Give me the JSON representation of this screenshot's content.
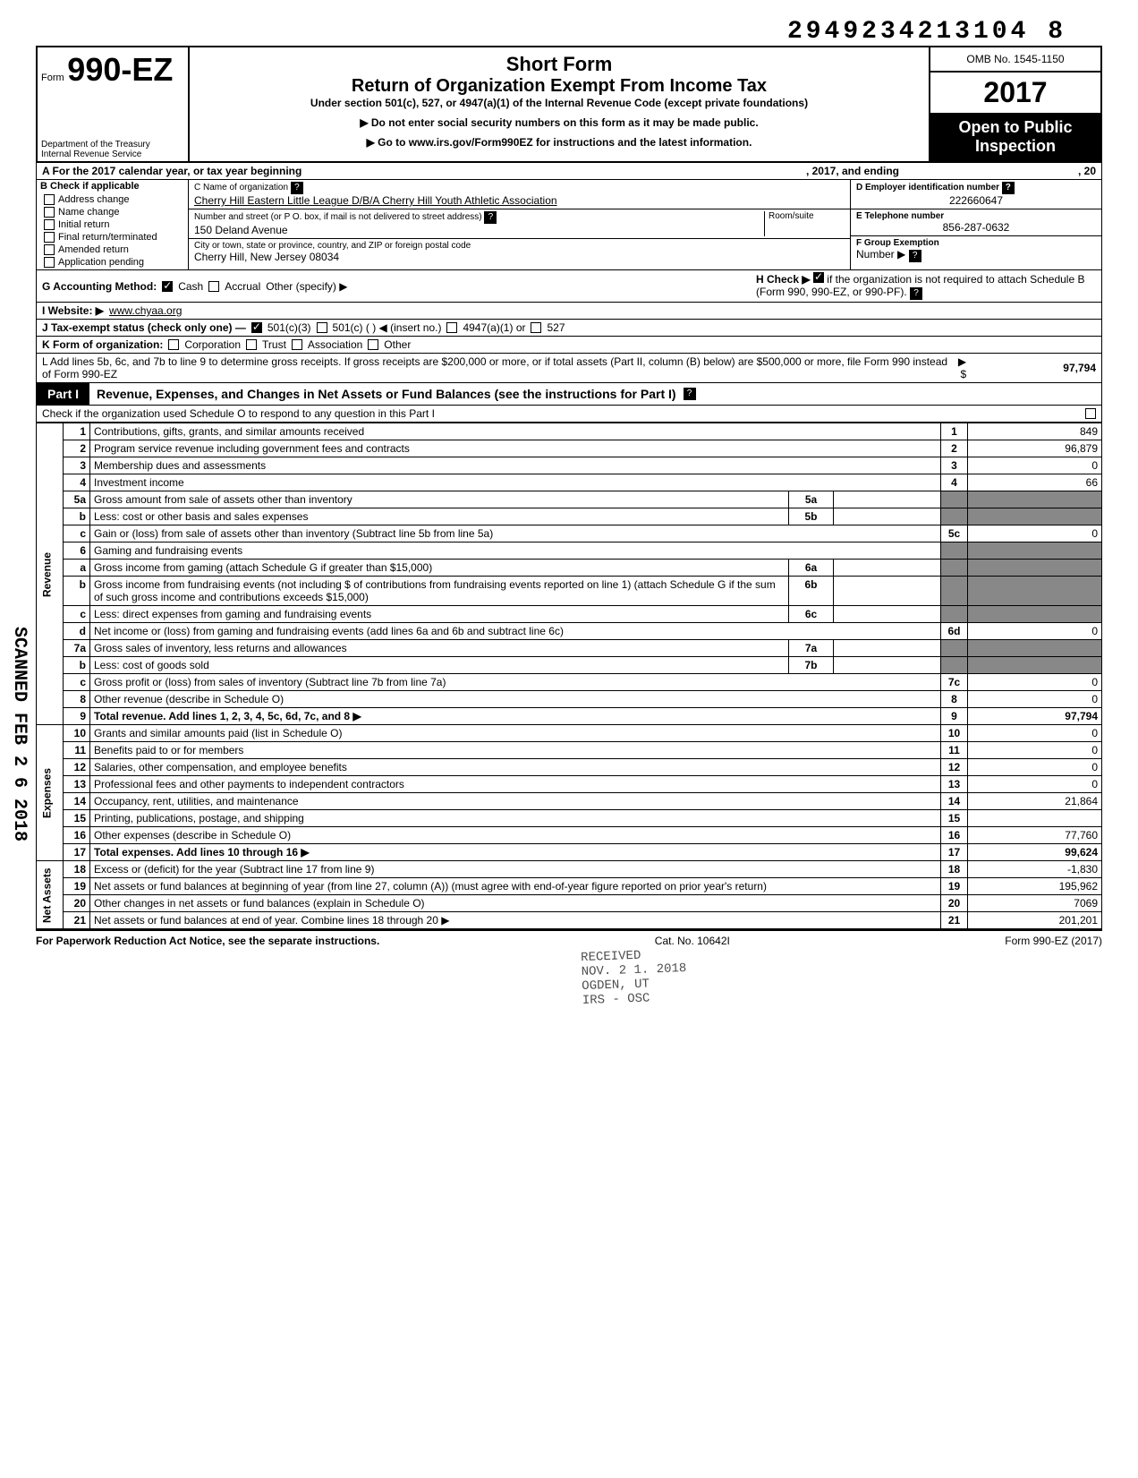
{
  "top_id": "2949234213104 8",
  "form": {
    "number": "990-EZ",
    "prefix": "Form",
    "short_form": "Short Form",
    "title": "Return of Organization Exempt From Income Tax",
    "under": "Under section 501(c), 527, or 4947(a)(1) of the Internal Revenue Code (except private foundations)",
    "notice1": "▶ Do not enter social security numbers on this form as it may be made public.",
    "notice2": "▶ Go to www.irs.gov/Form990EZ for instructions and the latest information.",
    "dept": "Department of the Treasury\nInternal Revenue Service",
    "omb": "OMB No. 1545-1150",
    "year": "2017",
    "open": "Open to Public Inspection"
  },
  "line_a": {
    "label": "A  For the 2017 calendar year, or tax year beginning",
    "mid": ", 2017, and ending",
    "end": ", 20"
  },
  "section_b": {
    "header": "B  Check if applicable",
    "items": [
      "Address change",
      "Name change",
      "Initial return",
      "Final return/terminated",
      "Amended return",
      "Application pending"
    ]
  },
  "section_c": {
    "name_label": "C  Name of organization",
    "name": "Cherry Hill Eastern Little League D/B/A Cherry Hill Youth Athletic Association",
    "addr_label": "Number and street (or P O. box, if mail is not delivered to street address)",
    "room_label": "Room/suite",
    "addr": "150 Deland Avenue",
    "city_label": "City or town, state or province, country, and ZIP or foreign postal code",
    "city": "Cherry Hill, New Jersey 08034"
  },
  "section_d": {
    "ein_label": "D Employer identification number",
    "ein": "222660647",
    "phone_label": "E Telephone number",
    "phone": "856-287-0632",
    "group_label": "F Group Exemption",
    "number_label": "Number ▶"
  },
  "line_g": {
    "label": "G  Accounting Method:",
    "opts": [
      "Cash",
      "Accrual"
    ],
    "other": "Other (specify) ▶"
  },
  "line_h": {
    "label": "H  Check ▶",
    "text": "if the organization is not required to attach Schedule B (Form 990, 990-EZ, or 990-PF)."
  },
  "line_i": {
    "label": "I   Website: ▶",
    "value": "www.chyaa.org"
  },
  "line_j": {
    "label": "J  Tax-exempt status (check only one) —",
    "opts": [
      "501(c)(3)",
      "501(c) (        ) ◀ (insert no.)",
      "4947(a)(1) or",
      "527"
    ]
  },
  "line_k": {
    "label": "K  Form of organization:",
    "opts": [
      "Corporation",
      "Trust",
      "Association",
      "Other"
    ]
  },
  "line_l": {
    "text": "L  Add lines 5b, 6c, and 7b to line 9 to determine gross receipts. If gross receipts are $200,000 or more, or if total assets (Part II, column (B) below) are $500,000 or more, file Form 990 instead of Form 990-EZ",
    "arrow": "▶  $",
    "value": "97,794"
  },
  "part1": {
    "label": "Part I",
    "title": "Revenue, Expenses, and Changes in Net Assets or Fund Balances (see the instructions for Part I)",
    "check": "Check if the organization used Schedule O to respond to any question in this Part I"
  },
  "revenue": {
    "side": "Revenue",
    "lines": [
      {
        "n": "1",
        "d": "Contributions, gifts, grants, and similar amounts received",
        "nc": "1",
        "v": "849"
      },
      {
        "n": "2",
        "d": "Program service revenue including government fees and contracts",
        "nc": "2",
        "v": "96,879"
      },
      {
        "n": "3",
        "d": "Membership dues and assessments",
        "nc": "3",
        "v": "0"
      },
      {
        "n": "4",
        "d": "Investment income",
        "nc": "4",
        "v": "66"
      },
      {
        "n": "5a",
        "d": "Gross amount from sale of assets other than inventory",
        "sc": "5a",
        "sv": ""
      },
      {
        "n": "b",
        "d": "Less: cost or other basis and sales expenses",
        "sc": "5b",
        "sv": ""
      },
      {
        "n": "c",
        "d": "Gain or (loss) from sale of assets other than inventory (Subtract line 5b from line 5a)",
        "nc": "5c",
        "v": "0"
      },
      {
        "n": "6",
        "d": "Gaming and fundraising events"
      },
      {
        "n": "a",
        "d": "Gross income from gaming (attach Schedule G if greater than $15,000)",
        "sc": "6a",
        "sv": ""
      },
      {
        "n": "b",
        "d": "Gross income from fundraising events (not including  $                    of contributions from fundraising events reported on line 1) (attach Schedule G if the sum of such gross income and contributions exceeds $15,000)",
        "sc": "6b",
        "sv": ""
      },
      {
        "n": "c",
        "d": "Less: direct expenses from gaming and fundraising events",
        "sc": "6c",
        "sv": ""
      },
      {
        "n": "d",
        "d": "Net income or (loss) from gaming and fundraising events (add lines 6a and 6b and subtract line 6c)",
        "nc": "6d",
        "v": "0"
      },
      {
        "n": "7a",
        "d": "Gross sales of inventory, less returns and allowances",
        "sc": "7a",
        "sv": ""
      },
      {
        "n": "b",
        "d": "Less: cost of goods sold",
        "sc": "7b",
        "sv": ""
      },
      {
        "n": "c",
        "d": "Gross profit or (loss) from sales of inventory (Subtract line 7b from line 7a)",
        "nc": "7c",
        "v": "0"
      },
      {
        "n": "8",
        "d": "Other revenue (describe in Schedule O)",
        "nc": "8",
        "v": "0"
      },
      {
        "n": "9",
        "d": "Total revenue. Add lines 1, 2, 3, 4, 5c, 6d, 7c, and 8",
        "nc": "9",
        "v": "97,794",
        "bold": true,
        "arrow": true
      }
    ]
  },
  "expenses": {
    "side": "Expenses",
    "lines": [
      {
        "n": "10",
        "d": "Grants and similar amounts paid (list in Schedule O)",
        "nc": "10",
        "v": "0"
      },
      {
        "n": "11",
        "d": "Benefits paid to or for members",
        "nc": "11",
        "v": "0"
      },
      {
        "n": "12",
        "d": "Salaries, other compensation, and employee benefits",
        "nc": "12",
        "v": "0"
      },
      {
        "n": "13",
        "d": "Professional fees and other payments to independent contractors",
        "nc": "13",
        "v": "0"
      },
      {
        "n": "14",
        "d": "Occupancy, rent, utilities, and maintenance",
        "nc": "14",
        "v": "21,864"
      },
      {
        "n": "15",
        "d": "Printing, publications, postage, and shipping",
        "nc": "15",
        "v": ""
      },
      {
        "n": "16",
        "d": "Other expenses (describe in Schedule O)",
        "nc": "16",
        "v": "77,760"
      },
      {
        "n": "17",
        "d": "Total expenses. Add lines 10 through 16",
        "nc": "17",
        "v": "99,624",
        "bold": true,
        "arrow": true
      }
    ]
  },
  "netassets": {
    "side": "Net Assets",
    "lines": [
      {
        "n": "18",
        "d": "Excess or (deficit) for the year (Subtract line 17 from line 9)",
        "nc": "18",
        "v": "-1,830"
      },
      {
        "n": "19",
        "d": "Net assets or fund balances at beginning of year (from line 27, column (A)) (must agree with end-of-year figure reported on prior year's return)",
        "nc": "19",
        "v": "195,962"
      },
      {
        "n": "20",
        "d": "Other changes in net assets or fund balances (explain in Schedule O)",
        "nc": "20",
        "v": "7069"
      },
      {
        "n": "21",
        "d": "Net assets or fund balances at end of year. Combine lines 18 through 20",
        "nc": "21",
        "v": "201,201",
        "arrow": true
      }
    ]
  },
  "footer": {
    "left": "For Paperwork Reduction Act Notice, see the separate instructions.",
    "center": "Cat. No. 10642I",
    "right": "Form 990-EZ (2017)"
  },
  "stamps": {
    "scanned": "SCANNED FEB 2 6 2018",
    "received": "RECEIVED\nNOV. 2 1. 2018\nOGDEN, UT\nIRS - OSC"
  },
  "colors": {
    "black": "#000000",
    "white": "#ffffff",
    "shaded": "#888888"
  }
}
